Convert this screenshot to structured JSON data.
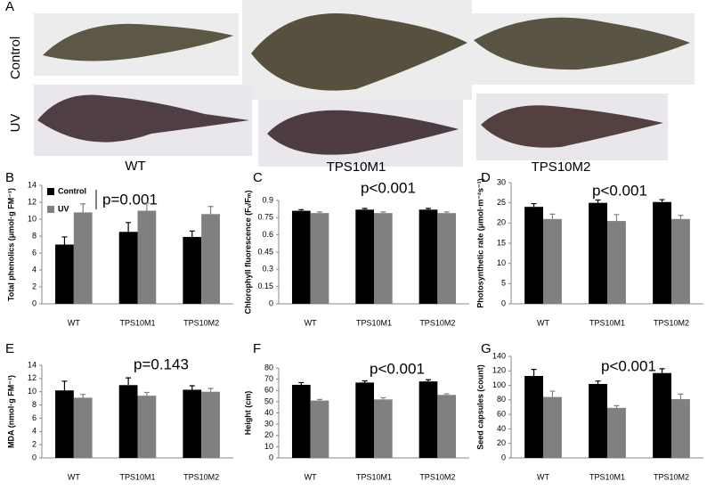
{
  "figure_label": "A",
  "photo_rows": [
    "Control",
    "UV"
  ],
  "photo_columns": [
    "WT",
    "TPS10M1",
    "TPS10M2"
  ],
  "chart_data": [
    {
      "type": "bar",
      "panel": "B",
      "ylabel": "Total phenolics (μmol·g FM⁻¹)",
      "annotation": "p=0.001",
      "categories": [
        "WT",
        "TPS10M1",
        "TPS10M2"
      ],
      "series": [
        {
          "name": "Control",
          "color": "#000000",
          "values": [
            7.0,
            8.5,
            7.9
          ],
          "errors": [
            0.9,
            1.1,
            0.7
          ]
        },
        {
          "name": "UV",
          "color": "#808080",
          "values": [
            10.8,
            11.0,
            10.6
          ],
          "errors": [
            1.0,
            0.9,
            0.9
          ]
        }
      ],
      "ylim": [
        0,
        14
      ],
      "yticks": [
        0,
        2,
        4,
        6,
        8,
        10,
        12,
        14
      ],
      "legend": "upper left"
    },
    {
      "type": "bar",
      "panel": "C",
      "ylabel": "Chlorophyll fluorescence (Fᵥ/Fₘ)",
      "annotation": "p<0.001",
      "categories": [
        "WT",
        "TPS10M1",
        "TPS10M2"
      ],
      "series": [
        {
          "color": "#000000",
          "values": [
            0.81,
            0.82,
            0.82
          ],
          "errors": [
            0.01,
            0.01,
            0.01
          ]
        },
        {
          "color": "#808080",
          "values": [
            0.79,
            0.79,
            0.79
          ],
          "errors": [
            0.01,
            0.01,
            0.01
          ]
        }
      ],
      "ylim": [
        0,
        0.9
      ],
      "yticks": [
        0,
        0.15,
        0.3,
        0.45,
        0.6,
        0.75,
        0.9
      ]
    },
    {
      "type": "bar",
      "panel": "D",
      "ylabel": "Photosynthetic rate (μmol·m⁻²s⁻¹)",
      "annotation": "p<0.001",
      "categories": [
        "WT",
        "TPS10M1",
        "TPS10M2"
      ],
      "series": [
        {
          "color": "#000000",
          "values": [
            24,
            25,
            25.2
          ],
          "errors": [
            0.8,
            0.7,
            0.6
          ]
        },
        {
          "color": "#808080",
          "values": [
            21,
            20.5,
            21
          ],
          "errors": [
            1.2,
            1.6,
            0.9
          ]
        }
      ],
      "ylim": [
        0,
        30
      ],
      "yticks": [
        0,
        5,
        10,
        15,
        20,
        25,
        30
      ]
    },
    {
      "type": "bar",
      "panel": "E",
      "ylabel": "MDA (nmol·g FM⁻¹)",
      "annotation": "p=0.143",
      "categories": [
        "WT",
        "TPS10M1",
        "TPS10M2"
      ],
      "series": [
        {
          "color": "#000000",
          "values": [
            10.2,
            11.0,
            10.3
          ],
          "errors": [
            1.4,
            1.1,
            0.6
          ]
        },
        {
          "color": "#808080",
          "values": [
            9.1,
            9.4,
            10.0
          ],
          "errors": [
            0.5,
            0.5,
            0.5
          ]
        }
      ],
      "ylim": [
        0,
        14
      ],
      "yticks": [
        0,
        2,
        4,
        6,
        8,
        10,
        12,
        14
      ]
    },
    {
      "type": "bar",
      "panel": "F",
      "ylabel": "Height (cm)",
      "annotation": "p<0.001",
      "categories": [
        "WT",
        "TPS10M1",
        "TPS10M2"
      ],
      "series": [
        {
          "color": "#000000",
          "values": [
            65,
            67,
            68
          ],
          "errors": [
            2,
            1.5,
            1.5
          ]
        },
        {
          "color": "#808080",
          "values": [
            51,
            52,
            56
          ],
          "errors": [
            1,
            1.5,
            1
          ]
        }
      ],
      "ylim": [
        0,
        80
      ],
      "yticks": [
        0,
        10,
        20,
        30,
        40,
        50,
        60,
        70,
        80
      ]
    },
    {
      "type": "bar",
      "panel": "G",
      "ylabel": "Seed capsules (count)",
      "annotation": "p<0.001",
      "categories": [
        "WT",
        "TPS10M1",
        "TPS10M2"
      ],
      "series": [
        {
          "color": "#000000",
          "values": [
            113,
            102,
            117
          ],
          "errors": [
            9,
            4,
            6
          ]
        },
        {
          "color": "#808080",
          "values": [
            84,
            69,
            81
          ],
          "errors": [
            8,
            3,
            7
          ]
        }
      ],
      "ylim": [
        0,
        140
      ],
      "yticks": [
        0,
        20,
        40,
        60,
        80,
        100,
        120,
        140
      ]
    }
  ]
}
